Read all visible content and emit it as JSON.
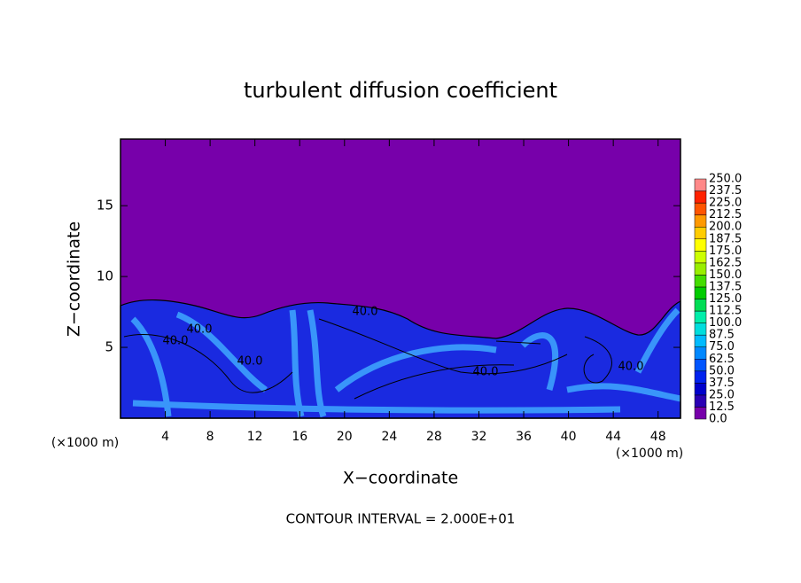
{
  "chart_data": {
    "type": "contour",
    "title": "turbulent diffusion coefficient",
    "xlabel": "X−coordinate",
    "ylabel": "Z−coordinate",
    "x_unit": "(×1000 m)",
    "footnote": "CONTOUR INTERVAL = 2.000E+01",
    "contour_labels": [
      "40.0",
      "40.0",
      "40.0",
      "40.0",
      "40.0",
      "40.0"
    ],
    "xlim": [
      0,
      50
    ],
    "xticks": [
      4,
      8,
      12,
      16,
      20,
      24,
      28,
      32,
      36,
      40,
      44,
      48
    ],
    "ylim": [
      0,
      19.7
    ],
    "yticks": [
      5,
      10,
      15
    ],
    "levels": [
      {
        "value": 0,
        "label": "0.0"
      },
      12.5,
      {
        "value": 25,
        "label": "25.0"
      },
      37.5,
      {
        "value": 50,
        "label": "50.0"
      },
      62.5,
      {
        "value": 75,
        "label": "75.0"
      },
      87.5,
      {
        "value": 100,
        "label": "100.0"
      },
      112.5,
      {
        "value": 125,
        "label": "125.0"
      },
      137.5,
      {
        "value": 150,
        "label": "150.0"
      },
      162.5,
      {
        "value": 175,
        "label": "175.0"
      },
      187.5,
      {
        "value": 200,
        "label": "200.0"
      },
      212.5,
      {
        "value": 225,
        "label": "225.0"
      },
      237.5,
      {
        "value": 250,
        "label": "250.0"
      }
    ],
    "colors": [
      "#7700aa",
      "#2a00b4",
      "#0000cc",
      "#0022ee",
      "#0055ff",
      "#0088ff",
      "#00bbff",
      "#00dddd",
      "#00eeaa",
      "#00dd55",
      "#00cc00",
      "#44dd00",
      "#99ee00",
      "#ccff00",
      "#ffff00",
      "#ffcc00",
      "#ff9900",
      "#ff5500",
      "#ff2200",
      "#ff8888"
    ]
  }
}
